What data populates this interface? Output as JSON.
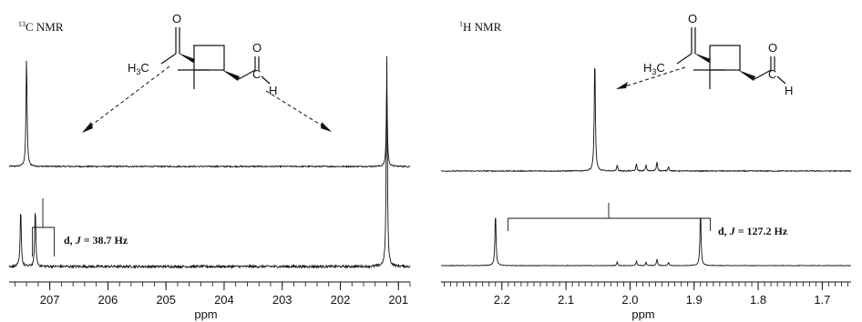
{
  "chart_data": [
    {
      "type": "line",
      "panel_label": {
        "superscript": "13",
        "text": "C NMR"
      },
      "xlabel": "ppm",
      "xlim": [
        207.7,
        200.8
      ],
      "x_reversed": true,
      "tick_labels": [
        "207",
        "206",
        "205",
        "204",
        "203",
        "202",
        "201"
      ],
      "tick_values": [
        207,
        206,
        205,
        204,
        203,
        202,
        201
      ],
      "series": [
        {
          "peaks": [
            {
              "x": 207.4,
              "intensity": 1.0
            },
            {
              "x": 201.2,
              "intensity": 0.72
            }
          ],
          "noise": 0.05
        },
        {
          "peaks": [
            {
              "x": 207.5,
              "intensity": 0.28
            },
            {
              "x": 207.25,
              "intensity": 0.28
            },
            {
              "x": 201.2,
              "intensity": 1.0
            }
          ],
          "noise": 0.05
        }
      ],
      "annotation": {
        "prefix": "d, ",
        "j": "J",
        "suffix": " = 38.7 Hz"
      }
    },
    {
      "type": "line",
      "panel_label": {
        "superscript": "1",
        "text": "H NMR"
      },
      "xlabel": "ppm",
      "xlim": [
        2.295,
        1.655
      ],
      "x_reversed": true,
      "tick_labels": [
        "2.2",
        "2.1",
        "2.0",
        "1.9",
        "1.8",
        "1.7"
      ],
      "tick_values": [
        2.2,
        2.1,
        2.0,
        1.9,
        1.8,
        1.7
      ],
      "series": [
        {
          "peaks": [
            {
              "x": 2.055,
              "intensity": 1.0
            },
            {
              "x": 2.02,
              "intensity": 0.05
            },
            {
              "x": 1.99,
              "intensity": 0.06
            },
            {
              "x": 1.975,
              "intensity": 0.05
            },
            {
              "x": 1.958,
              "intensity": 0.08
            },
            {
              "x": 1.94,
              "intensity": 0.04
            }
          ],
          "noise": 0.004
        },
        {
          "peaks": [
            {
              "x": 2.21,
              "intensity": 1.0
            },
            {
              "x": 1.89,
              "intensity": 1.0
            },
            {
              "x": 2.02,
              "intensity": 0.07
            },
            {
              "x": 1.99,
              "intensity": 0.08
            },
            {
              "x": 1.975,
              "intensity": 0.06
            },
            {
              "x": 1.958,
              "intensity": 0.12
            },
            {
              "x": 1.94,
              "intensity": 0.06
            }
          ],
          "noise": 0.005
        }
      ],
      "annotation": {
        "prefix": "d, ",
        "j": "J",
        "suffix": " = 127.2 Hz"
      }
    }
  ],
  "structure": {
    "methyl": "H",
    "methyl_sub": "3",
    "methyl_c": "C",
    "oxygen": "O",
    "aldehyde_c": "C",
    "aldehyde_h": "H"
  }
}
